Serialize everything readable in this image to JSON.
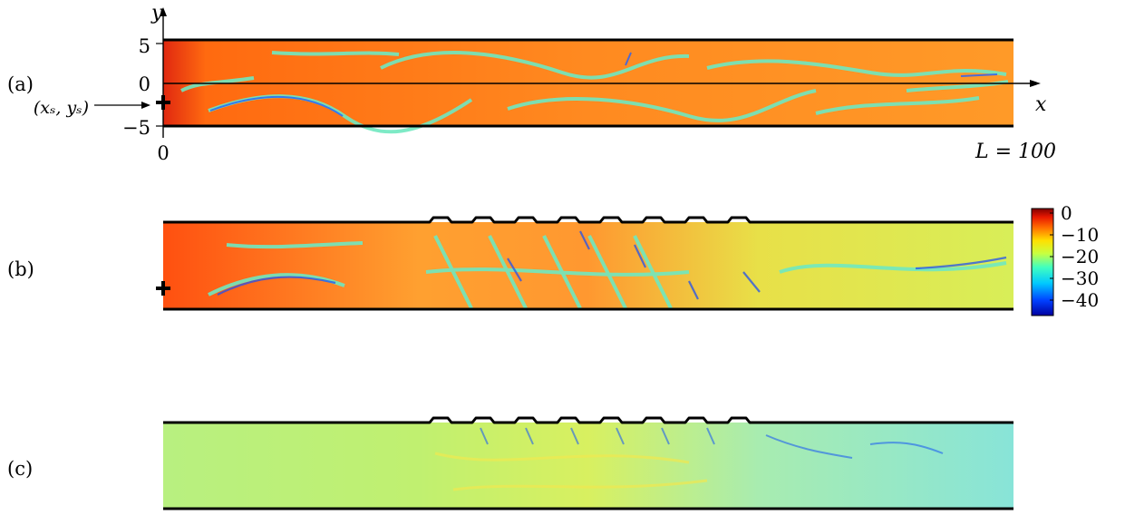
{
  "panels": [
    {
      "label": "(a)",
      "scatterers": 0
    },
    {
      "label": "(b)",
      "scatterers": 8
    },
    {
      "label": "(c)",
      "scatterers": 8
    }
  ],
  "axes": {
    "x_symbol": "x",
    "y_symbol": "y",
    "y_ticks": [
      "5",
      "0",
      "−5"
    ],
    "x_origin": "0",
    "length_label": "L = 100",
    "source_label": "(xₛ, yₛ)"
  },
  "colorbar": {
    "ticks": [
      "0",
      "−10",
      "−20",
      "−30",
      "−40"
    ],
    "range": [
      -45,
      0
    ],
    "colormap": "jet"
  },
  "colors": {
    "outline": "#000000",
    "field_hot": "#e8401c",
    "field_cold": "#1020c0"
  }
}
